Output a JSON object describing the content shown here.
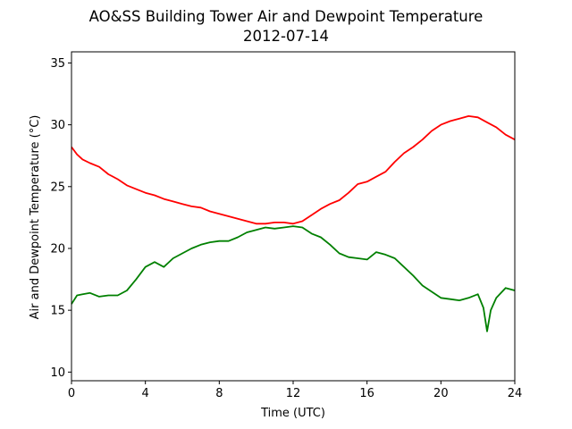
{
  "chart_data": {
    "type": "line",
    "title": "AO&SS Building Tower Air and Dewpoint Temperature",
    "subtitle": "2012-07-14",
    "xlabel": "Time (UTC)",
    "ylabel": "Air and Dewpoint Temperature (°C)",
    "xlim": [
      0,
      24
    ],
    "ylim": [
      9.3,
      35.9
    ],
    "x_ticks": [
      0,
      4,
      8,
      12,
      16,
      20,
      24
    ],
    "y_ticks": [
      10,
      15,
      20,
      25,
      30,
      35
    ],
    "grid": false,
    "series": [
      {
        "color": "#ff0000",
        "x": [
          0,
          0.3,
          0.6,
          1,
          1.5,
          2,
          2.5,
          3,
          3.5,
          4,
          4.5,
          5,
          5.5,
          6,
          6.5,
          7,
          7.5,
          8,
          8.5,
          9,
          9.5,
          10,
          10.5,
          11,
          11.5,
          12,
          12.5,
          13,
          13.5,
          14,
          14.5,
          15,
          15.5,
          16,
          16.5,
          17,
          17.5,
          18,
          18.5,
          19,
          19.5,
          20,
          20.5,
          21,
          21.5,
          22,
          22.5,
          23,
          23.5,
          24
        ],
        "y": [
          28.2,
          27.6,
          27.2,
          26.9,
          26.6,
          26.0,
          25.6,
          25.1,
          24.8,
          24.5,
          24.3,
          24.0,
          23.8,
          23.6,
          23.4,
          23.3,
          23.0,
          22.8,
          22.6,
          22.4,
          22.2,
          22.0,
          22.0,
          22.1,
          22.1,
          22.0,
          22.2,
          22.7,
          23.2,
          23.6,
          23.9,
          24.5,
          25.2,
          25.4,
          25.8,
          26.2,
          27.0,
          27.7,
          28.2,
          28.8,
          29.5,
          30.0,
          30.3,
          30.5,
          30.7,
          30.6,
          30.2,
          29.8,
          29.2,
          28.8
        ]
      },
      {
        "color": "#008000",
        "x": [
          0,
          0.3,
          0.6,
          1,
          1.5,
          2,
          2.5,
          3,
          3.5,
          4,
          4.5,
          5,
          5.5,
          6,
          6.5,
          7,
          7.5,
          8,
          8.5,
          9,
          9.5,
          10,
          10.5,
          11,
          11.5,
          12,
          12.5,
          13,
          13.5,
          14,
          14.5,
          15,
          15.5,
          16,
          16.5,
          17,
          17.5,
          18,
          18.5,
          19,
          19.5,
          20,
          20.5,
          21,
          21.5,
          22,
          22.3,
          22.5,
          22.7,
          23,
          23.5,
          24
        ],
        "y": [
          15.5,
          16.2,
          16.3,
          16.4,
          16.1,
          16.2,
          16.2,
          16.6,
          17.5,
          18.5,
          18.9,
          18.5,
          19.2,
          19.6,
          20.0,
          20.3,
          20.5,
          20.6,
          20.6,
          20.9,
          21.3,
          21.5,
          21.7,
          21.6,
          21.7,
          21.8,
          21.7,
          21.2,
          20.9,
          20.3,
          19.6,
          19.3,
          19.2,
          19.1,
          19.7,
          19.5,
          19.2,
          18.5,
          17.8,
          17.0,
          16.5,
          16.0,
          15.9,
          15.8,
          16.0,
          16.3,
          15.2,
          13.3,
          15.0,
          16.0,
          16.8,
          16.6
        ]
      }
    ]
  }
}
